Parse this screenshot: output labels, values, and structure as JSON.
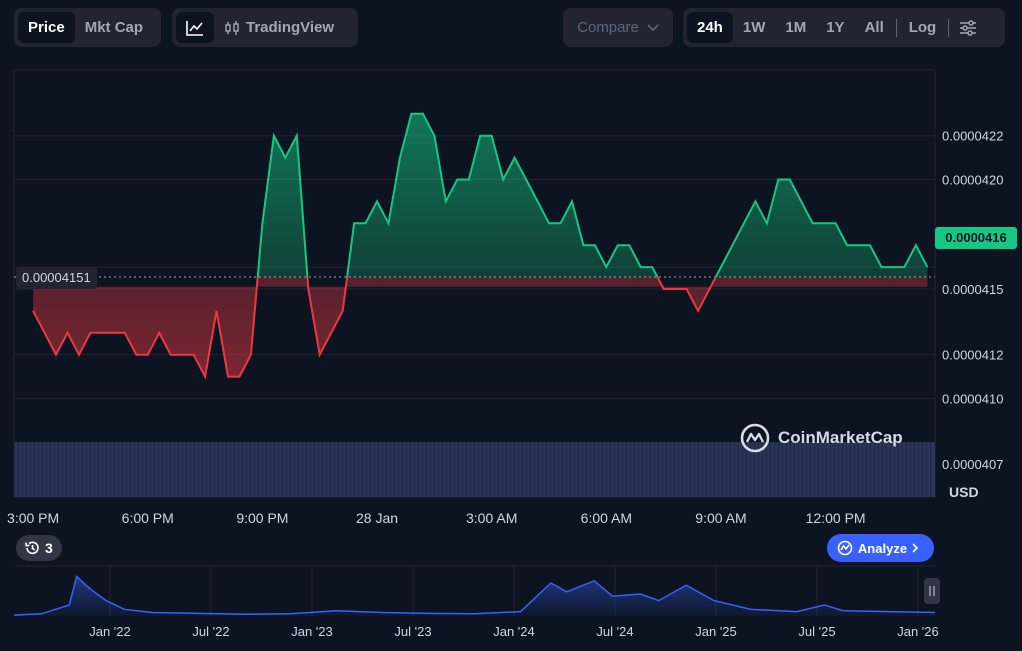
{
  "toolbar": {
    "price": "Price",
    "mkt_cap": "Mkt Cap",
    "tradingview": "TradingView",
    "compare": "Compare",
    "ranges": [
      "24h",
      "1W",
      "1M",
      "1Y",
      "All"
    ],
    "log": "Log"
  },
  "labels": {
    "reference_price": "0.00004151",
    "current_price": "0.0000416",
    "currency": "USD",
    "watermark": "CoinMarketCap",
    "alerts_count": "3",
    "analyze": "Analyze"
  },
  "colors": {
    "up": "#16c784",
    "down": "#ea3943",
    "volume": "#2f3a5f",
    "overview": "#3861fb"
  },
  "chart_data": {
    "type": "line",
    "baseline": 4.151e-05,
    "ylim": [
      4.055e-05,
      4.25e-05
    ],
    "yticks": [
      4.07e-05,
      4.1e-05,
      4.12e-05,
      4.15e-05,
      4.16e-05,
      4.2e-05,
      4.22e-05
    ],
    "ytick_labels": [
      "0.0000407",
      "0.0000410",
      "0.0000412",
      "0.0000415",
      "0.0000416",
      "0.0000420",
      "0.0000422"
    ],
    "xlim": [
      14.5,
      38.6
    ],
    "xticks": [
      15,
      18,
      21,
      24,
      27,
      30,
      33,
      36
    ],
    "xtick_labels": [
      "3:00 PM",
      "6:00 PM",
      "9:00 PM",
      "28 Jan",
      "3:00 AM",
      "6:00 AM",
      "9:00 AM",
      "12:00 PM"
    ],
    "x_unit": "hours since 27 Jan 00:00",
    "x": [
      15.0,
      15.3,
      15.6,
      15.9,
      16.2,
      16.5,
      16.8,
      17.1,
      17.4,
      17.7,
      18.0,
      18.3,
      18.6,
      18.9,
      19.2,
      19.5,
      19.8,
      20.1,
      20.4,
      20.7,
      21.0,
      21.3,
      21.6,
      21.9,
      22.2,
      22.5,
      22.8,
      23.1,
      23.4,
      23.7,
      24.0,
      24.3,
      24.6,
      24.9,
      25.2,
      25.5,
      25.8,
      26.1,
      26.4,
      26.7,
      27.0,
      27.3,
      27.6,
      27.9,
      28.2,
      28.5,
      28.8,
      29.1,
      29.4,
      29.7,
      30.0,
      30.3,
      30.6,
      30.9,
      31.2,
      31.5,
      31.8,
      32.1,
      32.4,
      32.7,
      33.0,
      33.3,
      33.6,
      33.9,
      34.2,
      34.5,
      34.8,
      35.1,
      35.4,
      35.7,
      36.0,
      36.3,
      36.6,
      36.9,
      37.2,
      37.5,
      37.8,
      38.1,
      38.4
    ],
    "y": [
      4.14e-05,
      4.13e-05,
      4.12e-05,
      4.13e-05,
      4.12e-05,
      4.13e-05,
      4.13e-05,
      4.13e-05,
      4.13e-05,
      4.12e-05,
      4.12e-05,
      4.13e-05,
      4.12e-05,
      4.12e-05,
      4.12e-05,
      4.11e-05,
      4.14e-05,
      4.11e-05,
      4.11e-05,
      4.12e-05,
      4.18e-05,
      4.22e-05,
      4.21e-05,
      4.22e-05,
      4.15e-05,
      4.12e-05,
      4.13e-05,
      4.14e-05,
      4.18e-05,
      4.18e-05,
      4.19e-05,
      4.18e-05,
      4.21e-05,
      4.23e-05,
      4.23e-05,
      4.22e-05,
      4.19e-05,
      4.2e-05,
      4.2e-05,
      4.22e-05,
      4.22e-05,
      4.2e-05,
      4.21e-05,
      4.2e-05,
      4.19e-05,
      4.18e-05,
      4.18e-05,
      4.19e-05,
      4.17e-05,
      4.17e-05,
      4.16e-05,
      4.17e-05,
      4.17e-05,
      4.16e-05,
      4.16e-05,
      4.15e-05,
      4.15e-05,
      4.15e-05,
      4.14e-05,
      4.15e-05,
      4.16e-05,
      4.17e-05,
      4.18e-05,
      4.19e-05,
      4.18e-05,
      4.2e-05,
      4.2e-05,
      4.19e-05,
      4.18e-05,
      4.18e-05,
      4.18e-05,
      4.17e-05,
      4.17e-05,
      4.17e-05,
      4.16e-05,
      4.16e-05,
      4.16e-05,
      4.17e-05,
      4.16e-05
    ]
  },
  "overview": {
    "tick_labels": [
      "Jan '22",
      "Jul '22",
      "Jan '23",
      "Jul '23",
      "Jan '24",
      "Jul '24",
      "Jan '25",
      "Jul '25",
      "Jan '26"
    ]
  }
}
